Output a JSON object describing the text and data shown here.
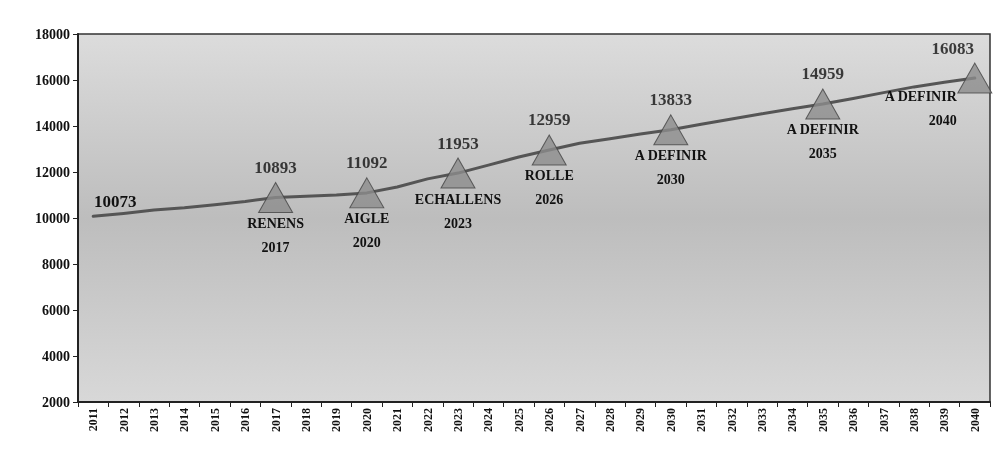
{
  "chart_data": {
    "type": "line",
    "categories": [
      "2011",
      "2012",
      "2013",
      "2014",
      "2015",
      "2016",
      "2017",
      "2018",
      "2019",
      "2020",
      "2021",
      "2022",
      "2023",
      "2024",
      "2025",
      "2026",
      "2027",
      "2028",
      "2029",
      "2030",
      "2031",
      "2032",
      "2033",
      "2034",
      "2035",
      "2036",
      "2037",
      "2038",
      "2039",
      "2040"
    ],
    "series": [
      {
        "color": "#555555",
        "marker": "none",
        "values": [
          10073,
          10200,
          10350,
          10450,
          10580,
          10720,
          10893,
          10950,
          11000,
          11092,
          11350,
          11700,
          11953,
          12300,
          12650,
          12959,
          13250,
          13450,
          13650,
          13833,
          14080,
          14300,
          14530,
          14750,
          14959,
          15200,
          15450,
          15700,
          15900,
          16083
        ],
        "value_labels": [
          "10073",
          null,
          null,
          null,
          null,
          null,
          null,
          null,
          null,
          null,
          null,
          null,
          null,
          null,
          null,
          null,
          null,
          null,
          null,
          null,
          null,
          null,
          null,
          null,
          null,
          null,
          null,
          null,
          null,
          null
        ]
      },
      {
        "type": "scatter",
        "color": "#8c8c8c",
        "marker": "triangle",
        "values": [
          null,
          null,
          null,
          null,
          null,
          null,
          10893,
          null,
          null,
          11092,
          null,
          null,
          11953,
          null,
          null,
          12959,
          null,
          null,
          null,
          13833,
          null,
          null,
          null,
          null,
          14959,
          null,
          null,
          null,
          null,
          16083
        ],
        "data_labels": true
      }
    ],
    "ylim": [
      2000,
      18000
    ],
    "yticks": [
      2000,
      4000,
      6000,
      8000,
      10000,
      12000,
      14000,
      16000,
      18000
    ],
    "annotations": [
      {
        "text": "RENENS\n2017",
        "x": "2017",
        "y": 10893
      },
      {
        "text": "AIGLE\n2020",
        "x": "2020",
        "y": 11092
      },
      {
        "text": "ECHALLENS\n2023",
        "x": "2023",
        "y": 11953
      },
      {
        "text": "ROLLE\n2026",
        "x": "2026",
        "y": 12959
      },
      {
        "text": "A DEFINIR\n2030",
        "x": "2030",
        "y": 13833
      },
      {
        "text": "A DEFINIR\n2035",
        "x": "2035",
        "y": 14959
      },
      {
        "text": "A DEFINIR\n2040",
        "x": "2040",
        "y": 16083
      }
    ]
  }
}
